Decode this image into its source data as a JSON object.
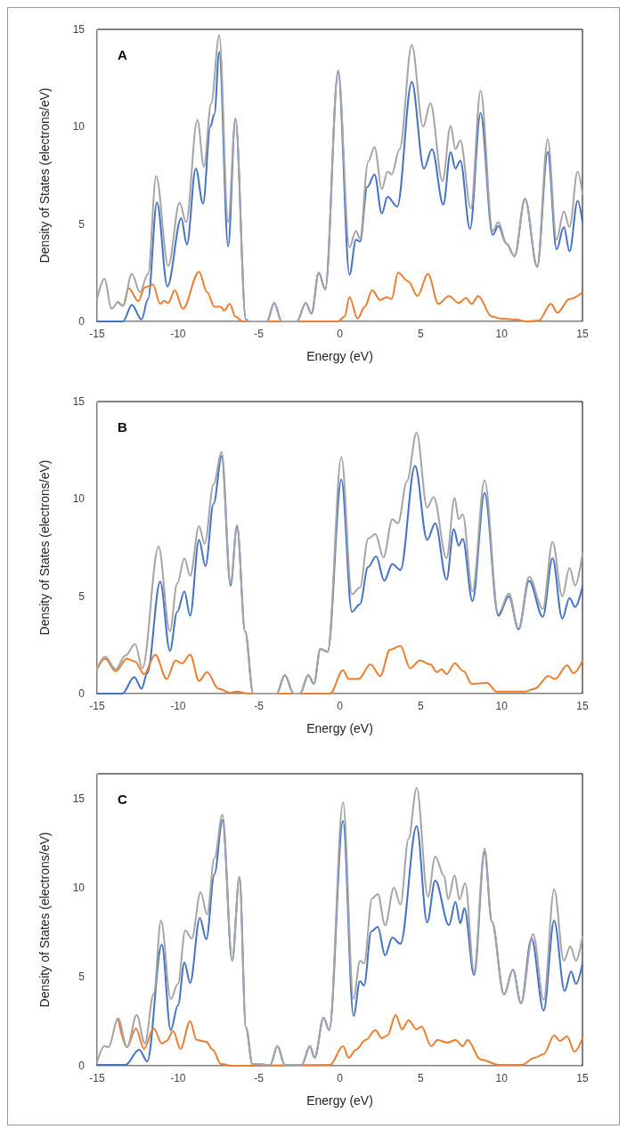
{
  "chart_data": [
    {
      "type": "line",
      "title": "A",
      "xlabel": "Energy (eV)",
      "ylabel": "Density of States (electrons/eV)",
      "xlim": [
        -15,
        15
      ],
      "ylim": [
        0,
        15
      ],
      "xticks": [
        -15,
        -10,
        -5,
        0,
        5,
        10,
        15
      ],
      "yticks": [
        0,
        5,
        10,
        15
      ],
      "marker": "none",
      "series": [
        {
          "color": "#4472c4",
          "x": [
            -15,
            -13.4,
            -12.85,
            -12.25,
            -11.85,
            -11.3,
            -10.65,
            -9.8,
            -9.45,
            -8.9,
            -8.45,
            -8.0,
            -7.75,
            -7.45,
            -6.9,
            -6.45,
            -5.8,
            -5.6,
            -4.5,
            -4.05,
            -3.6,
            -2.65,
            -2.1,
            -1.75,
            -1.3,
            -0.9,
            -0.1,
            0.6,
            1.0,
            1.25,
            1.7,
            2.15,
            2.6,
            2.95,
            3.55,
            4.45,
            5.2,
            5.7,
            6.4,
            6.85,
            7.15,
            7.45,
            8.05,
            8.7,
            9.45,
            9.8,
            10.3,
            10.8,
            11.45,
            12.2,
            12.85,
            13.4,
            13.85,
            14.2,
            14.7,
            15
          ],
          "values": [
            0,
            0,
            0.85,
            0.1,
            1.15,
            6.1,
            1.8,
            5.3,
            3.95,
            7.85,
            6.05,
            10.0,
            10.65,
            13.85,
            3.85,
            10.4,
            0.1,
            0,
            0,
            0.95,
            0,
            0,
            0.95,
            0.4,
            2.5,
            1.65,
            12.8,
            2.4,
            4.2,
            4.1,
            6.9,
            7.55,
            5.55,
            6.4,
            5.9,
            12.3,
            7.85,
            8.85,
            6.0,
            8.7,
            7.85,
            8.25,
            4.75,
            10.7,
            4.45,
            4.9,
            4.0,
            3.35,
            6.3,
            2.8,
            8.7,
            3.7,
            4.85,
            3.6,
            6.2,
            5.1
          ]
        },
        {
          "color": "#ed7d31",
          "x": [
            -13.7,
            -13.4,
            -13.05,
            -12.45,
            -12.05,
            -11.55,
            -11.1,
            -10.85,
            -10.6,
            -10.2,
            -9.7,
            -8.7,
            -8.2,
            -7.75,
            -7.35,
            -7.15,
            -6.8,
            -6.45,
            -6,
            -0.1,
            0.3,
            0.6,
            1.1,
            1.55,
            2.0,
            2.5,
            2.9,
            3.2,
            3.6,
            4.25,
            4.8,
            5.45,
            6.1,
            6.75,
            7.35,
            7.8,
            8.15,
            8.55,
            9.4,
            9.9,
            10.9,
            11.5,
            12.3,
            13.05,
            13.45,
            14.2,
            15
          ],
          "values": [
            1.0,
            0.8,
            1.7,
            1.05,
            1.75,
            1.9,
            0.9,
            1.05,
            0.95,
            1.6,
            0.65,
            2.55,
            1.5,
            0.75,
            0.75,
            0.55,
            0.9,
            0.25,
            0,
            0,
            0.25,
            1.25,
            0.15,
            0.75,
            1.6,
            1.1,
            1.25,
            1.15,
            2.5,
            2.05,
            1.3,
            2.45,
            0.9,
            1.3,
            0.95,
            1.2,
            0.9,
            1.3,
            0.25,
            0.15,
            0.1,
            0,
            0.05,
            0.9,
            0.45,
            1.15,
            1.5
          ]
        },
        {
          "color": "#a5a5a5",
          "x": [
            -15,
            -14.55,
            -14.1,
            -13.7,
            -13.4,
            -12.85,
            -12.35,
            -11.85,
            -11.35,
            -10.6,
            -9.9,
            -9.5,
            -8.8,
            -8.4,
            -7.95,
            -7.45,
            -6.9,
            -6.45,
            -5.8,
            -5.6,
            -4.5,
            -4.05,
            -3.6,
            -2.65,
            -2.1,
            -1.75,
            -1.3,
            -0.9,
            -0.1,
            0.6,
            1.0,
            1.25,
            1.75,
            2.15,
            2.6,
            2.95,
            3.2,
            3.7,
            4.45,
            5.15,
            5.6,
            6.35,
            6.85,
            7.15,
            7.45,
            8.1,
            8.7,
            9.45,
            9.8,
            10.3,
            10.8,
            11.45,
            12.2,
            12.85,
            13.4,
            13.85,
            14.2,
            14.7,
            15
          ],
          "values": [
            1.15,
            2.2,
            0.65,
            1.0,
            0.8,
            2.45,
            1.5,
            2.45,
            7.45,
            2.85,
            6.1,
            5.1,
            10.35,
            7.95,
            11.2,
            14.7,
            5.1,
            10.4,
            0.1,
            0,
            0,
            0.95,
            0,
            0,
            0.95,
            0.4,
            2.5,
            1.65,
            12.9,
            3.8,
            4.65,
            4.25,
            8.2,
            8.95,
            6.8,
            7.7,
            7.55,
            8.85,
            14.2,
            10.0,
            11.2,
            7.2,
            10.05,
            8.85,
            9.3,
            5.8,
            11.85,
            4.65,
            5.1,
            4.0,
            3.35,
            6.3,
            2.8,
            9.35,
            4.2,
            5.65,
            4.85,
            7.7,
            6.55
          ]
        }
      ]
    },
    {
      "type": "line",
      "title": "B",
      "xlabel": "Energy (eV)",
      "ylabel": "Density of States (electrons/eV)",
      "xlim": [
        -15,
        15
      ],
      "ylim": [
        0,
        15
      ],
      "xticks": [
        -15,
        -10,
        -5,
        0,
        5,
        10,
        15
      ],
      "yticks": [
        0,
        5,
        10,
        15
      ],
      "marker": "none",
      "series": [
        {
          "color": "#4472c4",
          "x": [
            -15,
            -13.45,
            -12.7,
            -12.25,
            -11.9,
            -11.1,
            -10.5,
            -10.05,
            -9.6,
            -9.25,
            -8.7,
            -8.3,
            -7.8,
            -7.3,
            -6.75,
            -6.35,
            -5.85,
            -5.35,
            -3.9,
            -3.4,
            -2.85,
            -2.45,
            -1.95,
            -1.6,
            -1.2,
            -0.75,
            0.1,
            0.75,
            1.25,
            1.75,
            2.25,
            2.75,
            3.25,
            3.75,
            4.65,
            5.4,
            5.9,
            6.6,
            7.05,
            7.35,
            7.6,
            8.2,
            8.95,
            9.8,
            10.45,
            11.05,
            11.7,
            12.55,
            13.15,
            13.75,
            14.2,
            14.55,
            15
          ],
          "values": [
            0,
            0,
            0.85,
            0.25,
            1.05,
            5.75,
            2.2,
            4.2,
            5.25,
            4.0,
            7.9,
            6.55,
            9.75,
            12.2,
            5.55,
            8.6,
            3.2,
            0,
            0,
            0.95,
            0,
            0,
            0.95,
            0.5,
            2.3,
            2.15,
            11.0,
            4.2,
            4.6,
            6.5,
            7.05,
            5.8,
            6.65,
            6.35,
            11.7,
            7.9,
            8.75,
            5.85,
            8.45,
            7.6,
            7.95,
            4.75,
            10.3,
            4.0,
            5.0,
            3.3,
            5.8,
            3.95,
            6.95,
            3.85,
            4.9,
            4.45,
            5.5
          ]
        },
        {
          "color": "#ed7d31",
          "x": [
            -15,
            -14.5,
            -13.85,
            -13.15,
            -12.65,
            -12.1,
            -11.4,
            -10.7,
            -10.15,
            -9.75,
            -9.25,
            -8.7,
            -8.2,
            -7.5,
            -6.8,
            -6.35,
            -5.65,
            -0.6,
            0.2,
            0.55,
            1.15,
            1.9,
            2.5,
            3.1,
            3.75,
            4.35,
            4.95,
            5.6,
            6.0,
            6.3,
            6.6,
            7.1,
            7.65,
            8.15,
            9.1,
            9.7,
            11.45,
            12.05,
            12.9,
            13.3,
            14.05,
            14.45,
            15
          ],
          "values": [
            1.25,
            1.8,
            1.15,
            1.8,
            1.65,
            1.0,
            2.0,
            0.75,
            1.7,
            1.55,
            2.0,
            0.65,
            1.1,
            0.25,
            0.05,
            0.1,
            0,
            0,
            1.2,
            0.75,
            0.75,
            1.5,
            0.9,
            2.25,
            2.45,
            1.3,
            1.7,
            1.5,
            1.1,
            1.25,
            1.0,
            1.55,
            1.15,
            0.5,
            0.55,
            0.1,
            0.1,
            0.25,
            0.9,
            0.75,
            1.45,
            1.05,
            1.7
          ]
        },
        {
          "color": "#a5a5a5",
          "x": [
            -15,
            -14.5,
            -13.85,
            -13.25,
            -12.65,
            -12.2,
            -11.2,
            -10.5,
            -10.05,
            -9.6,
            -9.25,
            -8.7,
            -8.35,
            -7.8,
            -7.3,
            -6.75,
            -6.35,
            -5.85,
            -5.35,
            -3.9,
            -3.4,
            -2.85,
            -2.45,
            -1.95,
            -1.6,
            -1.2,
            -0.75,
            0.1,
            0.75,
            1.25,
            1.75,
            2.2,
            2.7,
            3.25,
            3.6,
            4.15,
            4.75,
            5.4,
            5.8,
            6.6,
            7.1,
            7.35,
            7.6,
            8.2,
            8.95,
            9.8,
            10.45,
            11.05,
            11.7,
            12.55,
            13.15,
            13.75,
            14.2,
            14.55,
            15
          ],
          "values": [
            1.3,
            1.9,
            1.25,
            1.95,
            2.55,
            1.3,
            7.55,
            3.2,
            5.65,
            6.95,
            6.05,
            8.6,
            7.7,
            10.75,
            12.4,
            5.65,
            8.65,
            3.2,
            0,
            0,
            0.95,
            0,
            0,
            0.95,
            0.5,
            2.3,
            2.15,
            12.15,
            5.1,
            5.45,
            7.95,
            8.2,
            7.0,
            8.95,
            8.75,
            10.9,
            13.4,
            9.55,
            10.1,
            6.95,
            10.05,
            8.95,
            9.2,
            5.25,
            10.95,
            4.1,
            5.15,
            3.35,
            6.0,
            4.35,
            7.8,
            5.0,
            6.45,
            5.55,
            7.2
          ]
        }
      ]
    },
    {
      "type": "line",
      "title": "C",
      "xlabel": "Energy (eV)",
      "ylabel": "Density of States (electrons/eV)",
      "xlim": [
        -15,
        15
      ],
      "ylim": [
        0,
        16.4
      ],
      "xticks": [
        -15,
        -10,
        -5,
        0,
        5,
        10,
        15
      ],
      "yticks": [
        0,
        5,
        10,
        15
      ],
      "marker": "none",
      "series": [
        {
          "color": "#4472c4",
          "x": [
            -15,
            -13.25,
            -12.4,
            -11.9,
            -11.0,
            -10.45,
            -10.0,
            -9.6,
            -9.25,
            -8.65,
            -8.25,
            -7.75,
            -7.25,
            -6.65,
            -6.2,
            -5.8,
            -5.4,
            -4.3,
            -3.85,
            -3.4,
            -2.35,
            -1.85,
            -1.55,
            -1.0,
            -0.65,
            0.2,
            0.85,
            1.25,
            1.5,
            1.95,
            2.35,
            2.8,
            3.25,
            3.75,
            4.75,
            5.4,
            5.9,
            6.75,
            7.15,
            7.45,
            7.7,
            8.3,
            8.95,
            9.4,
            10.15,
            10.7,
            11.2,
            11.85,
            12.6,
            13.25,
            13.9,
            14.3,
            14.6,
            15
          ],
          "values": [
            0.05,
            0.05,
            0.9,
            0.25,
            6.8,
            2.0,
            3.4,
            5.8,
            4.65,
            8.3,
            7.1,
            10.75,
            13.8,
            5.9,
            10.6,
            2.15,
            0.1,
            0.05,
            1.1,
            0.05,
            0.05,
            1.1,
            0.45,
            2.7,
            2.0,
            13.75,
            2.8,
            4.75,
            4.5,
            7.55,
            7.8,
            6.2,
            7.2,
            6.85,
            13.45,
            8.05,
            10.4,
            7.9,
            9.2,
            8.0,
            8.85,
            5.1,
            12.0,
            8.1,
            4.0,
            5.4,
            3.5,
            7.15,
            3.1,
            8.15,
            4.2,
            5.3,
            4.6,
            5.75
          ]
        },
        {
          "color": "#ed7d31",
          "x": [
            -13.7,
            -13.15,
            -12.6,
            -12.1,
            -11.5,
            -11.0,
            -10.7,
            -10.3,
            -9.85,
            -9.25,
            -8.85,
            -8.25,
            -7.85,
            -7.35,
            -6.65,
            -0.6,
            0.2,
            0.55,
            1.0,
            1.6,
            2.2,
            2.6,
            2.95,
            3.45,
            3.85,
            4.25,
            4.75,
            5.05,
            5.65,
            6.05,
            6.65,
            7.15,
            7.6,
            7.9,
            8.7,
            9.85,
            11.25,
            12.05,
            12.6,
            13.25,
            13.6,
            14.05,
            14.5,
            15
          ],
          "values": [
            2.65,
            1.05,
            2.1,
            0.95,
            2.1,
            1.25,
            1.4,
            1.95,
            0.95,
            2.5,
            1.45,
            1.35,
            0.9,
            0.1,
            0,
            0.05,
            1.1,
            0.45,
            0.9,
            1.45,
            2.0,
            1.55,
            1.7,
            2.85,
            2.05,
            2.55,
            2.05,
            2.2,
            1.1,
            1.45,
            1.3,
            1.45,
            1.1,
            1.45,
            0.35,
            0.05,
            0.05,
            0.45,
            0.65,
            1.7,
            1.4,
            1.65,
            0.8,
            1.55
          ]
        },
        {
          "color": "#a5a5a5",
          "x": [
            -15,
            -14.55,
            -14.3,
            -13.7,
            -13.15,
            -12.55,
            -12.05,
            -11.5,
            -11.05,
            -10.45,
            -10.0,
            -9.55,
            -9.15,
            -8.6,
            -8.2,
            -7.75,
            -7.25,
            -6.65,
            -6.2,
            -5.8,
            -5.4,
            -4.3,
            -3.85,
            -3.4,
            -2.35,
            -1.85,
            -1.55,
            -1.0,
            -0.65,
            0.2,
            0.85,
            1.25,
            1.5,
            2.0,
            2.35,
            2.8,
            3.35,
            3.75,
            4.25,
            4.75,
            5.45,
            5.9,
            6.45,
            6.7,
            7.1,
            7.4,
            7.75,
            8.3,
            8.95,
            9.4,
            10.15,
            10.7,
            11.2,
            11.95,
            12.6,
            13.25,
            13.85,
            14.25,
            14.6,
            15
          ],
          "values": [
            0.2,
            1.1,
            1.05,
            2.65,
            1.05,
            2.85,
            1.25,
            4.05,
            8.15,
            3.75,
            4.6,
            7.6,
            7.15,
            9.75,
            8.5,
            11.65,
            14.1,
            5.9,
            10.6,
            2.15,
            0.1,
            0.05,
            1.1,
            0.05,
            0.05,
            1.1,
            0.45,
            2.7,
            2.0,
            14.8,
            3.75,
            5.9,
            5.75,
            9.4,
            9.65,
            7.9,
            10.0,
            9.05,
            12.75,
            15.6,
            9.5,
            11.75,
            10.65,
            9.35,
            10.7,
            9.35,
            10.25,
            5.3,
            12.2,
            8.1,
            4.0,
            5.4,
            3.5,
            7.4,
            3.7,
            9.9,
            5.9,
            6.7,
            5.9,
            7.25
          ]
        }
      ]
    }
  ]
}
